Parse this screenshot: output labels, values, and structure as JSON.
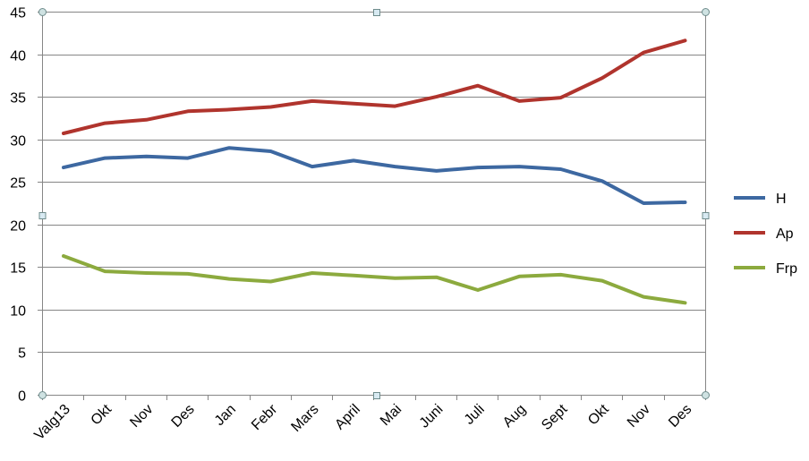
{
  "chart_data": {
    "type": "line",
    "title": "",
    "xlabel": "",
    "ylabel": "",
    "ylim": [
      0,
      45
    ],
    "yticks": [
      0,
      5,
      10,
      15,
      20,
      25,
      30,
      35,
      40,
      45
    ],
    "grid": true,
    "legend_position": "right",
    "categories": [
      "Valg13",
      "Okt",
      "Nov",
      "Des",
      "Jan",
      "Febr",
      "Mars",
      "April",
      "Mai",
      "Juni",
      "Juli",
      "Aug",
      "Sept",
      "Okt",
      "Nov",
      "Des"
    ],
    "series": [
      {
        "name": "H",
        "color": "#3d68a1",
        "values": [
          26.7,
          27.8,
          28.0,
          27.8,
          29.0,
          28.6,
          26.8,
          27.5,
          26.8,
          26.3,
          26.7,
          26.8,
          26.5,
          25.1,
          22.5,
          22.6
        ]
      },
      {
        "name": "Ap",
        "color": "#b0342d",
        "values": [
          30.7,
          31.9,
          32.3,
          33.3,
          33.5,
          33.8,
          34.5,
          34.2,
          33.9,
          35.0,
          36.3,
          34.5,
          34.9,
          37.2,
          40.2,
          41.6
        ]
      },
      {
        "name": "Frp",
        "color": "#8caa3e",
        "values": [
          16.3,
          14.5,
          14.3,
          14.2,
          13.6,
          13.3,
          14.3,
          14.0,
          13.7,
          13.8,
          12.3,
          13.9,
          14.1,
          13.4,
          11.5,
          10.8
        ]
      }
    ]
  }
}
